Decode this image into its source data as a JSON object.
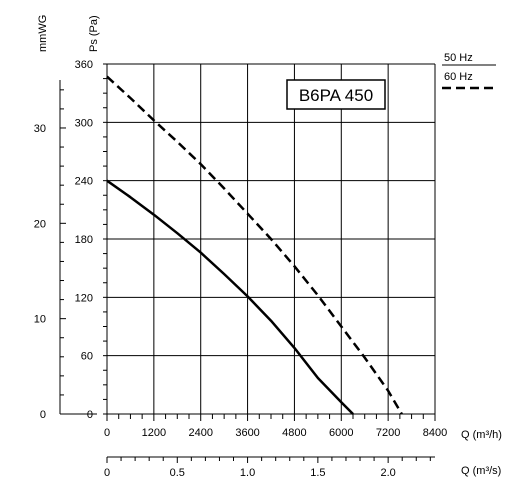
{
  "chart_data": {
    "type": "line",
    "model_label": "B6PA 450",
    "y_axis_left_title": "mmWG",
    "y_axis_right_title": "Ps (Pa)",
    "x_axis_title": "Q (m³/h)",
    "x2_axis_title": "Q (m³/s)",
    "xlim": [
      0,
      8400
    ],
    "ylim": [
      0,
      360
    ],
    "x_ticks": [
      "0",
      "1200",
      "2400",
      "3600",
      "4800",
      "6000",
      "7200",
      "8400"
    ],
    "y_ticks": [
      "0",
      "60",
      "120",
      "180",
      "240",
      "300",
      "360"
    ],
    "mmwg_ticks": [
      "0",
      "10",
      "20",
      "30"
    ],
    "x2_ticks": [
      "0",
      "0.5",
      "1.0",
      "1.5",
      "2.0"
    ],
    "grid": true,
    "legend_position": "top-right",
    "series": [
      {
        "name": "50 Hz",
        "style": "solid",
        "color": "#000000",
        "x": [
          0,
          600,
          1200,
          1800,
          2400,
          3000,
          3600,
          4200,
          4800,
          5400,
          6000,
          6300
        ],
        "y": [
          240,
          223,
          205,
          186,
          166,
          144,
          121,
          96,
          68,
          37,
          12,
          0
        ]
      },
      {
        "name": "60 Hz",
        "style": "dashed",
        "color": "#000000",
        "x": [
          0,
          600,
          1200,
          1800,
          2400,
          3000,
          3600,
          4200,
          4800,
          5400,
          6000,
          6600,
          7200,
          7550
        ],
        "y": [
          347,
          325,
          302,
          280,
          257,
          232,
          206,
          180,
          152,
          122,
          90,
          58,
          24,
          0
        ]
      }
    ]
  }
}
